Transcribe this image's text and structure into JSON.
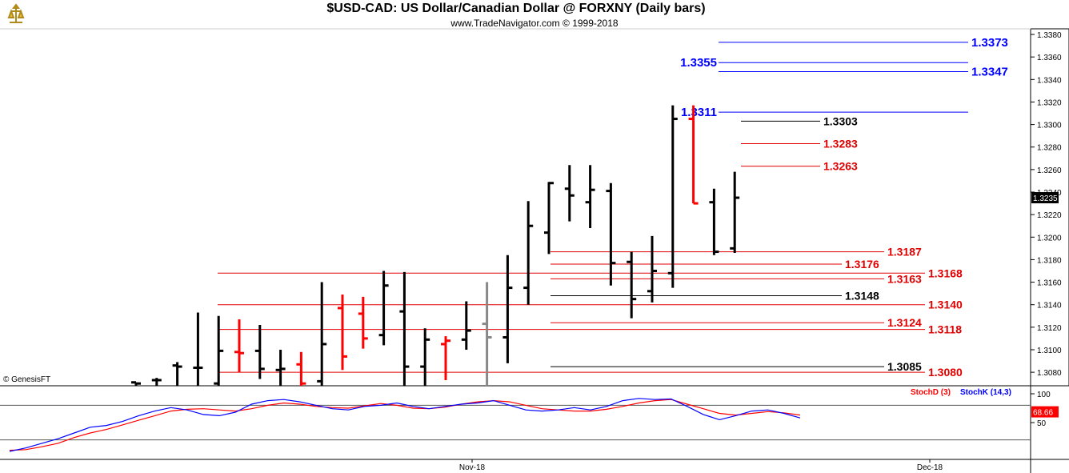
{
  "header": {
    "title": "$USD-CAD:  US Dollar/Canadian Dollar @ FORXNY  (Daily bars)",
    "subtitle": "www.TradeNavigator.com © 1999-2018"
  },
  "footer_credit": "© GenesisFT",
  "colors": {
    "up": "#000000",
    "down": "#ff0000",
    "level_blue": "#0000ff",
    "level_red": "#e00000",
    "stoch_d": "#ff0000",
    "stoch_k": "#0000ff"
  },
  "chart_data": [
    {
      "type": "ohlc",
      "title": "$USD-CAD:  US Dollar/Canadian Dollar @ FORXNY  (Daily bars)",
      "ylim": [
        1.3068,
        1.3385
      ],
      "y_ticks": [
        "1.3380",
        "1.3360",
        "1.3340",
        "1.3320",
        "1.3300",
        "1.3280",
        "1.3260",
        "1.3240",
        "1.3220",
        "1.3200",
        "1.3180",
        "1.3160",
        "1.3140",
        "1.3120",
        "1.3100",
        "1.3080"
      ],
      "x_ticks": [
        "Nov-18",
        "Dec-18"
      ],
      "last_price": "1.3235",
      "bars": [
        {
          "open": 1.3071,
          "high": 1.3071,
          "low": 1.306,
          "close": 1.307,
          "color": "black"
        },
        {
          "open": 1.3073,
          "high": 1.3075,
          "low": 1.306,
          "close": 1.3073,
          "color": "black"
        },
        {
          "open": 1.3086,
          "high": 1.3089,
          "low": 1.306,
          "close": 1.3085,
          "color": "black"
        },
        {
          "open": 1.3084,
          "high": 1.3133,
          "low": 1.306,
          "close": 1.3084,
          "color": "black"
        },
        {
          "open": 1.307,
          "high": 1.313,
          "low": 1.306,
          "close": 1.3099,
          "color": "black"
        },
        {
          "open": 1.3098,
          "high": 1.3127,
          "low": 1.308,
          "close": 1.3097,
          "color": "red"
        },
        {
          "open": 1.3099,
          "high": 1.3122,
          "low": 1.3074,
          "close": 1.3083,
          "color": "black"
        },
        {
          "open": 1.3082,
          "high": 1.31,
          "low": 1.306,
          "close": 1.3083,
          "color": "black"
        },
        {
          "open": 1.3087,
          "high": 1.3098,
          "low": 1.306,
          "close": 1.307,
          "color": "red"
        },
        {
          "open": 1.3072,
          "high": 1.316,
          "low": 1.306,
          "close": 1.3105,
          "color": "black"
        },
        {
          "open": 1.3137,
          "high": 1.3149,
          "low": 1.3082,
          "close": 1.3094,
          "color": "red"
        },
        {
          "open": 1.3132,
          "high": 1.3147,
          "low": 1.3101,
          "close": 1.311,
          "color": "red"
        },
        {
          "open": 1.3113,
          "high": 1.317,
          "low": 1.3104,
          "close": 1.3157,
          "color": "black"
        },
        {
          "open": 1.3134,
          "high": 1.3169,
          "low": 1.306,
          "close": 1.3085,
          "color": "black"
        },
        {
          "open": 1.3085,
          "high": 1.3119,
          "low": 1.306,
          "close": 1.3109,
          "color": "black"
        },
        {
          "open": 1.3105,
          "high": 1.3112,
          "low": 1.3073,
          "close": 1.3108,
          "color": "red"
        },
        {
          "open": 1.3109,
          "high": 1.3143,
          "low": 1.31,
          "close": 1.3117,
          "color": "black"
        },
        {
          "open": 1.3123,
          "high": 1.316,
          "low": 1.306,
          "close": 1.3111,
          "color": "gray"
        },
        {
          "open": 1.3111,
          "high": 1.3184,
          "low": 1.3088,
          "close": 1.3155,
          "color": "black"
        },
        {
          "open": 1.3155,
          "high": 1.3232,
          "low": 1.314,
          "close": 1.321,
          "color": "black"
        },
        {
          "open": 1.3204,
          "high": 1.3249,
          "low": 1.3185,
          "close": 1.3248,
          "color": "black"
        },
        {
          "open": 1.3243,
          "high": 1.3264,
          "low": 1.3214,
          "close": 1.3237,
          "color": "black"
        },
        {
          "open": 1.3231,
          "high": 1.3264,
          "low": 1.3208,
          "close": 1.3242,
          "color": "black"
        },
        {
          "open": 1.3241,
          "high": 1.3248,
          "low": 1.3157,
          "close": 1.3177,
          "color": "black"
        },
        {
          "open": 1.3178,
          "high": 1.3187,
          "low": 1.3128,
          "close": 1.3145,
          "color": "black"
        },
        {
          "open": 1.3152,
          "high": 1.3201,
          "low": 1.3142,
          "close": 1.317,
          "color": "black"
        },
        {
          "open": 1.3168,
          "high": 1.3317,
          "low": 1.3155,
          "close": 1.3305,
          "color": "black"
        },
        {
          "open": 1.3305,
          "high": 1.3317,
          "low": 1.323,
          "close": 1.323,
          "color": "red"
        },
        {
          "open": 1.3231,
          "high": 1.3243,
          "low": 1.3184,
          "close": 1.3187,
          "color": "black"
        },
        {
          "open": 1.319,
          "high": 1.3258,
          "low": 1.3186,
          "close": 1.3235,
          "color": "black"
        }
      ],
      "levels": [
        {
          "label": "1.3373",
          "value": 1.3373,
          "color": "blue",
          "side": "right"
        },
        {
          "label": "1.3355",
          "value": 1.3355,
          "color": "blue",
          "side": "left"
        },
        {
          "label": "1.3347",
          "value": 1.3347,
          "color": "blue",
          "side": "right"
        },
        {
          "label": "1.3311",
          "value": 1.3311,
          "color": "blue",
          "side": "left"
        },
        {
          "label": "1.3303",
          "value": 1.3303,
          "color": "black",
          "side": "right"
        },
        {
          "label": "1.3283",
          "value": 1.3283,
          "color": "red",
          "side": "right"
        },
        {
          "label": "1.3263",
          "value": 1.3263,
          "color": "red",
          "side": "right"
        },
        {
          "label": "1.3187",
          "value": 1.3187,
          "color": "red",
          "side": "right"
        },
        {
          "label": "1.3176",
          "value": 1.3176,
          "color": "red",
          "side": "right"
        },
        {
          "label": "1.3168",
          "value": 1.3168,
          "color": "red",
          "side": "right"
        },
        {
          "label": "1.3163",
          "value": 1.3163,
          "color": "red",
          "side": "right"
        },
        {
          "label": "1.3148",
          "value": 1.3148,
          "color": "black",
          "side": "right"
        },
        {
          "label": "1.3140",
          "value": 1.314,
          "color": "red",
          "side": "right"
        },
        {
          "label": "1.3124",
          "value": 1.3124,
          "color": "red",
          "side": "right"
        },
        {
          "label": "1.3118",
          "value": 1.3118,
          "color": "red",
          "side": "right"
        },
        {
          "label": "1.3085",
          "value": 1.3085,
          "color": "black",
          "side": "right"
        },
        {
          "label": "1.3080",
          "value": 1.308,
          "color": "red",
          "side": "right"
        }
      ]
    },
    {
      "type": "line",
      "title": "",
      "ylim": [
        0,
        100
      ],
      "y_ticks": [
        "100",
        "50"
      ],
      "reference_lines": [
        80,
        20
      ],
      "last_value_label": "68.66",
      "series": [
        {
          "name": "StochD (3)",
          "color": "red",
          "values": [
            2,
            3,
            8,
            14,
            24,
            32,
            38,
            46,
            54,
            62,
            70,
            73,
            74,
            72,
            70,
            74,
            80,
            84,
            82,
            78,
            76,
            75,
            79,
            83,
            80,
            75,
            74,
            77,
            82,
            86,
            88,
            86,
            80,
            74,
            72,
            70,
            70,
            73,
            78,
            84,
            88,
            90,
            82,
            74,
            66,
            63,
            66,
            69,
            67,
            63
          ]
        },
        {
          "name": "StochK (14,3)",
          "color": "blue",
          "values": [
            0,
            6,
            14,
            22,
            32,
            42,
            45,
            52,
            62,
            70,
            76,
            72,
            64,
            62,
            68,
            82,
            88,
            90,
            86,
            80,
            74,
            72,
            78,
            80,
            84,
            78,
            74,
            78,
            82,
            84,
            88,
            80,
            72,
            70,
            72,
            76,
            72,
            78,
            88,
            92,
            90,
            91,
            78,
            64,
            55,
            62,
            70,
            72,
            66,
            58
          ]
        }
      ],
      "x_ticks": [
        "Nov-18",
        "Dec-18"
      ]
    }
  ]
}
